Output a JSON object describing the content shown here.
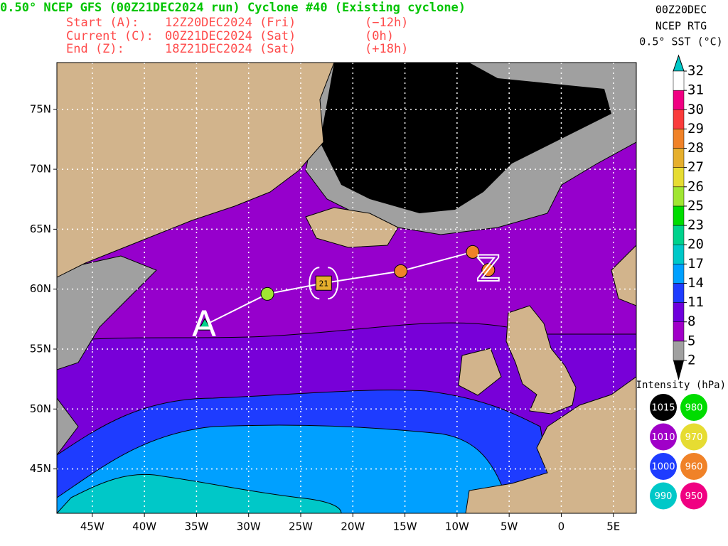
{
  "header": {
    "title": "0.50° NCEP GFS (00Z21DEC2024 run) Cyclone #40 (Existing cyclone)",
    "lines": [
      {
        "label": "Start (A):",
        "time": "12Z20DEC2024 (Fri)",
        "offset": "(−12h)"
      },
      {
        "label": "Current (C):",
        "time": "00Z21DEC2024 (Sat)",
        "offset": "(0h)"
      },
      {
        "label": "End (Z):",
        "time": "18Z21DEC2024 (Sat)",
        "offset": "(+18h)"
      }
    ]
  },
  "top_right": {
    "lines": [
      "00Z20DEC",
      "NCEP RTG",
      "0.5° SST (°C)"
    ]
  },
  "colorbar": {
    "ticks": [
      2,
      5,
      8,
      11,
      14,
      17,
      20,
      23,
      25,
      26,
      27,
      28,
      29,
      30,
      31,
      32
    ],
    "colors": [
      "#a0a0a0",
      "#a000c8",
      "#6e00dc",
      "#1e3cff",
      "#00a0ff",
      "#00c8c8",
      "#00d28c",
      "#00dc00",
      "#a0e632",
      "#e6dc32",
      "#e6af2d",
      "#f08228",
      "#fa3c3c",
      "#f00082",
      "#ffffff"
    ]
  },
  "intensity": {
    "title": "Intensity (hPa):",
    "items": [
      {
        "label": "1015",
        "color": "#000000"
      },
      {
        "label": "980",
        "color": "#00dc00"
      },
      {
        "label": "1010",
        "color": "#a000c8"
      },
      {
        "label": "970",
        "color": "#e6dc32"
      },
      {
        "label": "1000",
        "color": "#1e3cff"
      },
      {
        "label": "960",
        "color": "#f08228"
      },
      {
        "label": "990",
        "color": "#00c8c8"
      },
      {
        "label": "950",
        "color": "#f00082"
      }
    ]
  },
  "map": {
    "xlim": [
      -48.4,
      7.2
    ],
    "ylim": [
      41.3,
      78.9
    ],
    "xticks": [
      {
        "value": -45,
        "label": "45W"
      },
      {
        "value": -40,
        "label": "40W"
      },
      {
        "value": -35,
        "label": "35W"
      },
      {
        "value": -30,
        "label": "30W"
      },
      {
        "value": -25,
        "label": "25W"
      },
      {
        "value": -20,
        "label": "20W"
      },
      {
        "value": -15,
        "label": "15W"
      },
      {
        "value": -10,
        "label": "10W"
      },
      {
        "value": -5,
        "label": "5W"
      },
      0,
      {
        "value": 5,
        "label": "5E"
      }
    ],
    "yticks": [
      {
        "value": 45,
        "label": "45N"
      },
      {
        "value": 50,
        "label": "50N"
      },
      {
        "value": 55,
        "label": "55N"
      },
      {
        "value": 60,
        "label": "60N"
      },
      {
        "value": 65,
        "label": "65N"
      },
      {
        "value": 70,
        "label": "70N"
      },
      {
        "value": 75,
        "label": "75N"
      }
    ],
    "track": [
      {
        "lon": -34.2,
        "lat": 57.0,
        "color": "#00d28c"
      },
      {
        "lon": -28.2,
        "lat": 59.6,
        "color": "#a0e632"
      },
      {
        "lon": -22.8,
        "lat": 60.5,
        "color": "#e6af2d"
      },
      {
        "lon": -15.4,
        "lat": 61.5,
        "color": "#f08228"
      },
      {
        "lon": -8.5,
        "lat": 63.1,
        "color": "#f08228"
      },
      {
        "lon": -7.0,
        "lat": 61.6,
        "color": "#f08228"
      }
    ],
    "start_letter": "A",
    "end_letter": "Z",
    "current_label": "21"
  }
}
